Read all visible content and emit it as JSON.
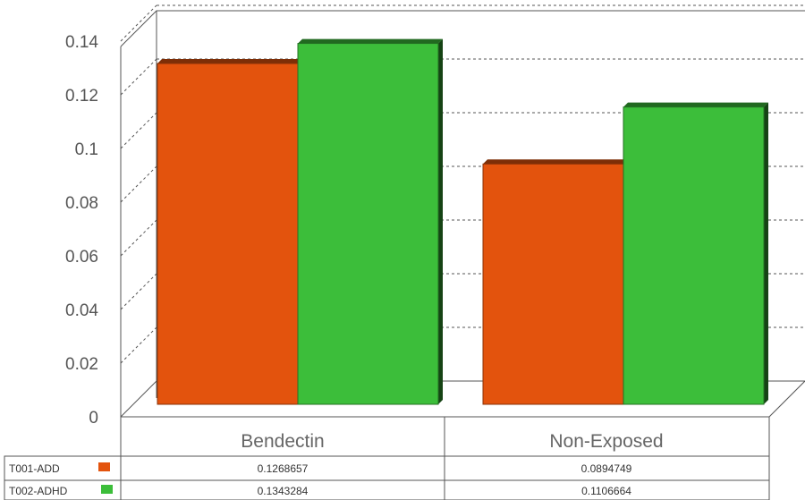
{
  "chart_data": {
    "type": "bar",
    "categories": [
      "Bendectin",
      "Non-Exposed"
    ],
    "series": [
      {
        "name": "T001-ADD",
        "color": "#e3530d",
        "values": [
          0.1268657,
          0.0894749
        ]
      },
      {
        "name": "T002-ADHD",
        "color": "#3cbe3a",
        "values": [
          0.1343284,
          0.1106664
        ]
      }
    ],
    "table_values": [
      [
        "0.1268657",
        "0.0894749"
      ],
      [
        "0.1343284",
        "0.1106664"
      ]
    ],
    "y_ticks": [
      "0",
      "0.02",
      "0.04",
      "0.06",
      "0.08",
      "0.1",
      "0.12",
      "0.14"
    ],
    "ylim": [
      0,
      0.14
    ],
    "grid": "dashed",
    "legend": "table-bottom-left"
  }
}
